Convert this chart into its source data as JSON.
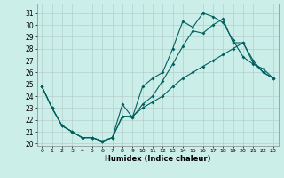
{
  "xlabel": "Humidex (Indice chaleur)",
  "bg_color": "#cceee8",
  "grid_color": "#b0c8c8",
  "line_color": "#006060",
  "xlim": [
    -0.5,
    23.5
  ],
  "ylim": [
    19.8,
    31.8
  ],
  "xticks": [
    0,
    1,
    2,
    3,
    4,
    5,
    6,
    7,
    8,
    9,
    10,
    11,
    12,
    13,
    14,
    15,
    16,
    17,
    18,
    19,
    20,
    21,
    22,
    23
  ],
  "yticks": [
    20,
    21,
    22,
    23,
    24,
    25,
    26,
    27,
    28,
    29,
    30,
    31
  ],
  "line1_x": [
    0,
    1,
    2,
    3,
    4,
    5,
    6,
    7,
    8,
    9,
    10,
    11,
    12,
    13,
    14,
    15,
    16,
    17,
    18,
    19,
    20,
    21,
    22,
    23
  ],
  "line1_y": [
    24.8,
    23.0,
    21.5,
    21.0,
    20.5,
    20.5,
    20.2,
    20.5,
    23.3,
    22.2,
    24.8,
    25.5,
    26.0,
    28.0,
    30.3,
    29.8,
    31.0,
    30.7,
    30.2,
    28.7,
    27.3,
    26.7,
    26.3,
    25.5
  ],
  "line2_x": [
    0,
    1,
    2,
    3,
    4,
    5,
    6,
    7,
    8,
    9,
    10,
    11,
    12,
    13,
    14,
    15,
    16,
    17,
    18,
    19,
    20,
    21,
    22,
    23
  ],
  "line2_y": [
    24.8,
    23.0,
    21.5,
    21.0,
    20.5,
    20.5,
    20.2,
    20.5,
    22.3,
    22.2,
    23.3,
    24.0,
    25.3,
    26.7,
    28.2,
    29.5,
    29.3,
    30.0,
    30.5,
    28.5,
    28.5,
    27.0,
    26.0,
    25.5
  ],
  "line3_x": [
    0,
    1,
    2,
    3,
    4,
    5,
    6,
    7,
    8,
    9,
    10,
    11,
    12,
    13,
    14,
    15,
    16,
    17,
    18,
    19,
    20,
    21,
    22,
    23
  ],
  "line3_y": [
    24.8,
    23.0,
    21.5,
    21.0,
    20.5,
    20.5,
    20.2,
    20.5,
    22.3,
    22.3,
    23.0,
    23.5,
    24.0,
    24.8,
    25.5,
    26.0,
    26.5,
    27.0,
    27.5,
    28.0,
    28.5,
    26.8,
    26.0,
    25.5
  ]
}
